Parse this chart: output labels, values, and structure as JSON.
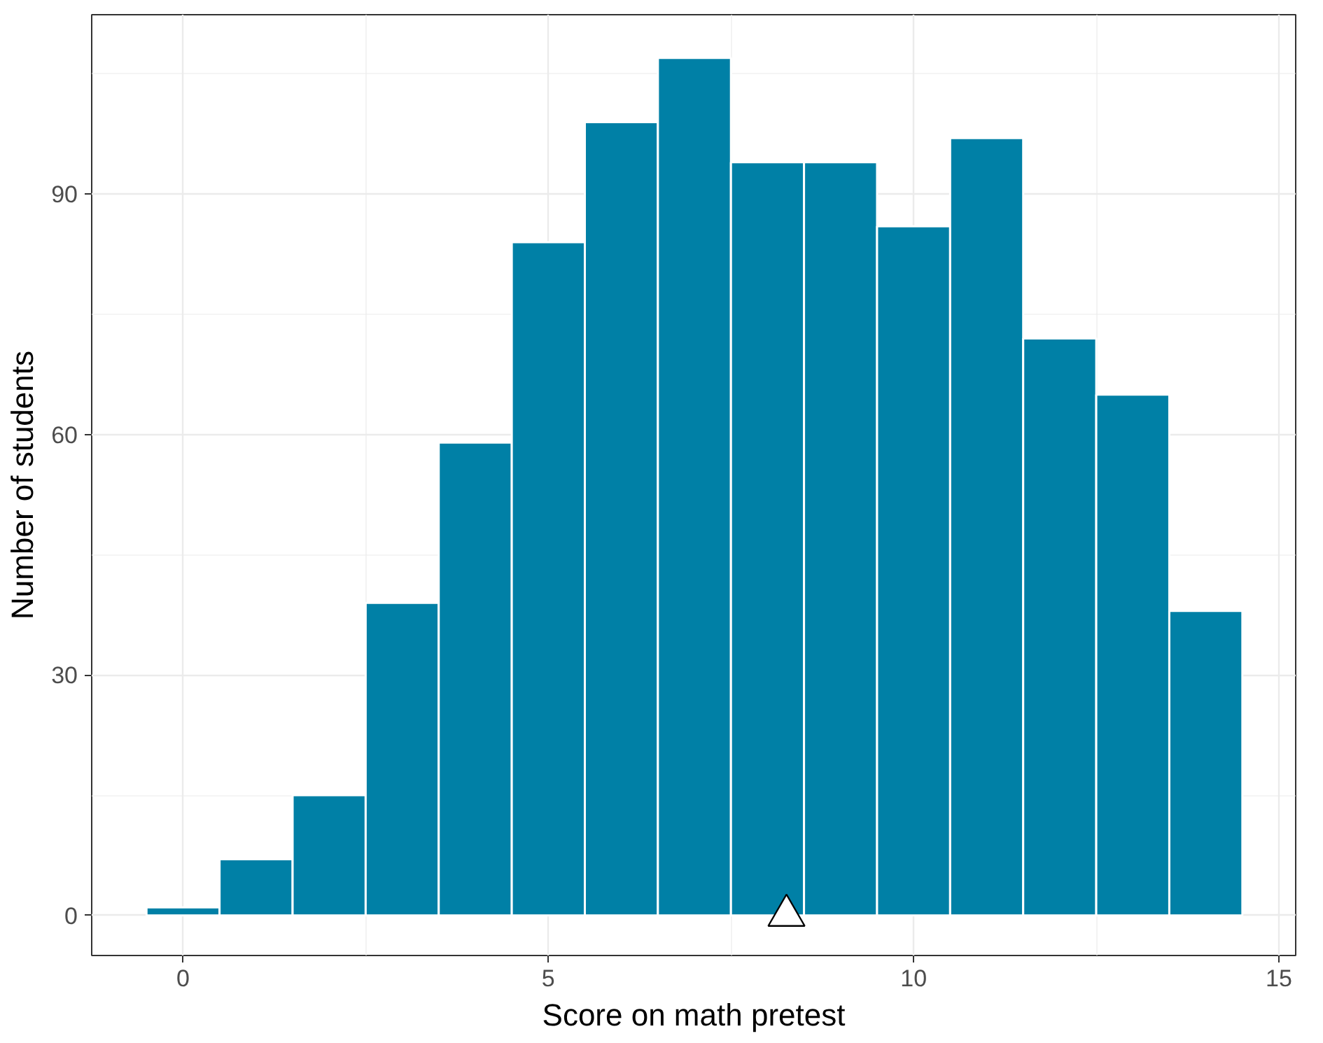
{
  "chart_data": {
    "type": "histogram",
    "xlabel": "Score on math pretest",
    "ylabel": "Number of students",
    "bins": [
      -0.5,
      0.5,
      1.5,
      2.5,
      3.5,
      4.5,
      5.5,
      6.5,
      7.5,
      8.5,
      9.5,
      10.5,
      11.5,
      12.5,
      13.5,
      14.5
    ],
    "series": [
      {
        "color": "#0080a6",
        "values": [
          1,
          7,
          15,
          39,
          59,
          84,
          99,
          107,
          94,
          94,
          86,
          97,
          72,
          65,
          38
        ]
      },
      {
        "type": "scatter",
        "x": [
          8.26
        ],
        "values": [
          0
        ],
        "color": "#ffffff",
        "marker": "triangle"
      }
    ],
    "xlim": [
      -1.25,
      15.23
    ],
    "ylim": [
      -5,
      112.4
    ],
    "xticks": [
      0,
      5,
      10,
      15
    ],
    "yticks": [
      0,
      30,
      60,
      90
    ],
    "grid": true
  }
}
